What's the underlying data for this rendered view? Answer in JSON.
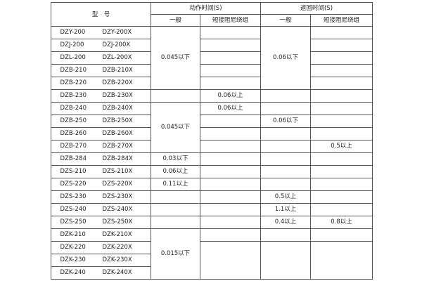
{
  "header": {
    "model": "型　号",
    "action_time": "动作时间(S)",
    "return_time": "返回时间(S)",
    "general": "一般",
    "short_winding": "短接阻尼绕组"
  },
  "rows": [
    {
      "model_a": "DZY-200",
      "model_b": "DZY-200X",
      "action_general": "0.045以下",
      "action_short": "",
      "return_general": "0.06以下",
      "return_short": ""
    },
    {
      "model_a": "DZJ-200",
      "model_b": "DZJ-200X",
      "action_short": "",
      "return_short": ""
    },
    {
      "model_a": "DZL-200",
      "model_b": "DZL-200X",
      "action_short": "",
      "return_short": ""
    },
    {
      "model_a": "DZB-210",
      "model_b": "DZB-210X",
      "action_short": "",
      "return_short": ""
    },
    {
      "model_a": "DZB-220",
      "model_b": "DZB-220X",
      "action_short": "",
      "return_short": ""
    },
    {
      "model_a": "DZB-230",
      "model_b": "DZB-230X",
      "action_general": "",
      "action_short": "0.06以上",
      "return_general": "",
      "return_short": ""
    },
    {
      "model_a": "DZB-240",
      "model_b": "DZB-240X",
      "action_general": "0.045以下",
      "action_short": "0.06以上",
      "return_general": "",
      "return_short": ""
    },
    {
      "model_a": "DZB-250",
      "model_b": "DZB-250X",
      "action_short": "",
      "return_general": "0.06以下",
      "return_short": ""
    },
    {
      "model_a": "DZB-260",
      "model_b": "DZB-260X",
      "action_short": "",
      "return_general": "",
      "return_short": ""
    },
    {
      "model_a": "DZB-270",
      "model_b": "DZB-270X",
      "action_short": "",
      "return_general": "",
      "return_short": "0.5以上"
    },
    {
      "model_a": "DZB-284",
      "model_b": "DZB-284X",
      "action_general": "0.03以下",
      "action_short": "",
      "return_general": "",
      "return_short": ""
    },
    {
      "model_a": "DZS-210",
      "model_b": "DZS-210X",
      "action_general": "0.06以上",
      "action_short": "",
      "return_general": "",
      "return_short": ""
    },
    {
      "model_a": "DZS-220",
      "model_b": "DZS-220X",
      "action_general": "0.11以上",
      "action_short": "",
      "return_general": "",
      "return_short": ""
    },
    {
      "model_a": "DZS-230",
      "model_b": "DZS-230X",
      "action_general": "",
      "action_short": "",
      "return_general": "0.5以上",
      "return_short": ""
    },
    {
      "model_a": "DZS-240",
      "model_b": "DZS-240X",
      "action_general": "",
      "action_short": "",
      "return_general": "1.1以上",
      "return_short": ""
    },
    {
      "model_a": "DZS-250",
      "model_b": "DZS-250X",
      "action_general": "",
      "action_short": "",
      "return_general": "0.4以上",
      "return_short": "0.8以上"
    },
    {
      "model_a": "DZK-210",
      "model_b": "DZK-210X",
      "action_general": "0.015以下",
      "action_short": "",
      "return_general": "",
      "return_short": ""
    },
    {
      "model_a": "DZK-220",
      "model_b": "DZK-220X",
      "action_short": "",
      "return_general": "",
      "return_short": ""
    },
    {
      "model_a": "DZK-230",
      "model_b": "DZK-230X"
    },
    {
      "model_a": "DZK-240",
      "model_b": "DZK-240X"
    }
  ]
}
